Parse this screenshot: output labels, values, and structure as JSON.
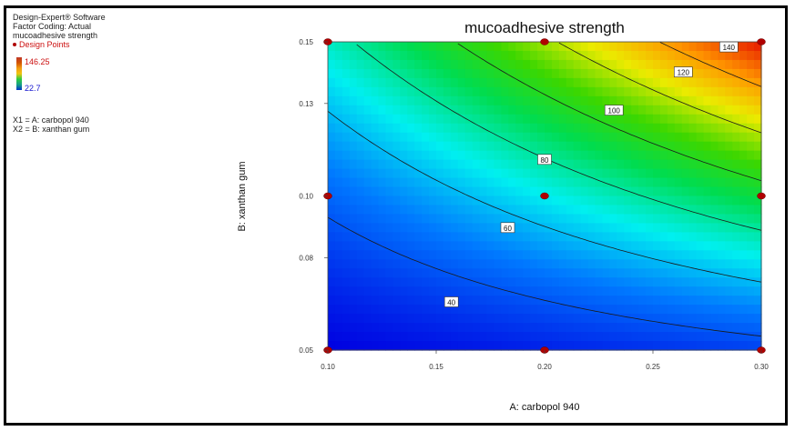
{
  "software": {
    "line1": "Design-Expert® Software",
    "line2": "Factor Coding: Actual",
    "line3": "mucoadhesive strength"
  },
  "legend": {
    "design_points": "Design Points",
    "scale_max": "146.25",
    "scale_min": "22.7",
    "factor1": "X1 = A: carbopol 940",
    "factor2": "X2 = B: xanthan gum"
  },
  "chart_data": {
    "type": "contour",
    "title": "mucoadhesive strength",
    "xlabel": "A: carbopol 940",
    "ylabel": "B: xanthan gum",
    "xlim": [
      0.1,
      0.3
    ],
    "ylim": [
      0.05,
      0.15
    ],
    "x_ticks": [
      "0.10",
      "0.15",
      "0.20",
      "0.25",
      "0.30"
    ],
    "y_ticks": [
      "0.05",
      "0.08",
      "0.10",
      "0.13",
      "0.15"
    ],
    "response_range": [
      22.7,
      146.25
    ],
    "contour_levels": [
      40,
      60,
      80,
      100,
      120,
      140
    ],
    "contour_labels": [
      {
        "text": "40",
        "x": 0.157,
        "y": 0.0655
      },
      {
        "text": "60",
        "x": 0.183,
        "y": 0.0896
      },
      {
        "text": "80",
        "x": 0.2,
        "y": 0.1117
      },
      {
        "text": "100",
        "x": 0.232,
        "y": 0.1277
      },
      {
        "text": "120",
        "x": 0.264,
        "y": 0.1401
      },
      {
        "text": "140",
        "x": 0.285,
        "y": 0.1482
      }
    ],
    "design_points": [
      {
        "x": 0.1,
        "y": 0.05
      },
      {
        "x": 0.2,
        "y": 0.05
      },
      {
        "x": 0.3,
        "y": 0.05
      },
      {
        "x": 0.1,
        "y": 0.1
      },
      {
        "x": 0.2,
        "y": 0.1
      },
      {
        "x": 0.3,
        "y": 0.1
      },
      {
        "x": 0.1,
        "y": 0.15
      },
      {
        "x": 0.2,
        "y": 0.15
      },
      {
        "x": 0.3,
        "y": 0.15
      }
    ],
    "colors": {
      "low": "#0000e0",
      "mid": "#00cc33",
      "high": "#e51400",
      "point": "#b00000"
    }
  }
}
